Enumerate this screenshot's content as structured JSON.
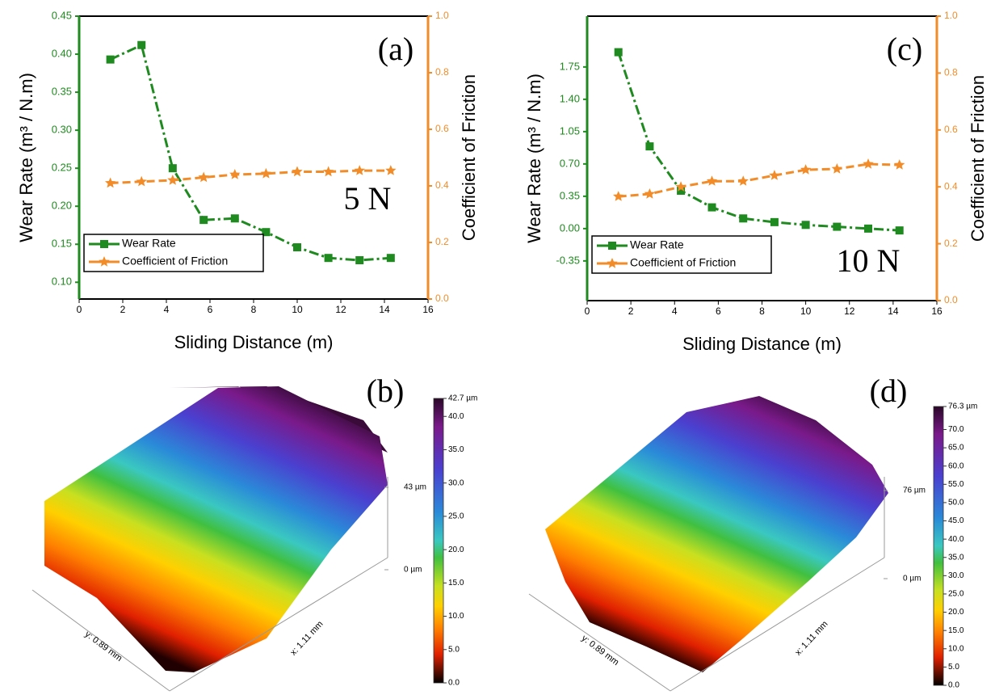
{
  "chart_data": [
    {
      "type": "line",
      "panel_label": "(a)",
      "annotation": "5 N",
      "xlabel": "Sliding Distance (m)",
      "ylabel": "Wear Rate (m³ / N.m)",
      "y2label": "Coefficient of Friction",
      "x": [
        1.43,
        2.86,
        4.29,
        5.71,
        7.14,
        8.57,
        10,
        11.43,
        12.86,
        14.29
      ],
      "series": [
        {
          "name": "Wear Rate",
          "color": "#1f8a1f",
          "marker": "square",
          "dash": "dashdot",
          "values": [
            0.393,
            0.412,
            0.25,
            0.182,
            0.184,
            0.166,
            0.146,
            0.132,
            0.129,
            0.132
          ]
        },
        {
          "name": "Coefficient of Friction",
          "color": "#f28c28",
          "marker": "star",
          "dash": "dash",
          "axis": "y2",
          "values": [
            0.41,
            0.415,
            0.42,
            0.43,
            0.44,
            0.443,
            0.45,
            0.45,
            0.454,
            0.454
          ]
        }
      ],
      "xlim": [
        0,
        16
      ],
      "xticks": [
        0,
        2,
        4,
        6,
        8,
        10,
        12,
        14,
        16
      ],
      "ylim": [
        0.078,
        0.45
      ],
      "yticks": [
        {
          "value": 0.1,
          "label": "0.10"
        },
        0.15,
        {
          "value": 0.2,
          "label": "0.20"
        },
        0.25,
        {
          "value": 0.3,
          "label": "0.30"
        },
        0.35,
        {
          "value": 0.4,
          "label": "0.40"
        },
        0.45
      ],
      "y2lim": [
        0,
        1
      ],
      "y2ticks": [
        {
          "value": 0,
          "label": "0.0"
        },
        0.2,
        0.4,
        0.6,
        0.8,
        {
          "value": 1,
          "label": "1.0"
        }
      ],
      "legend": "lower left"
    },
    {
      "type": "surface",
      "panel_label": "(b)",
      "xlabel": "x: 1.11 mm",
      "ylabel": "y: 0.89 mm",
      "zlim": [
        0,
        43
      ],
      "zticks": [
        {
          "value": 43,
          "label": "43 µm"
        },
        {
          "value": 0,
          "label": "0 µm"
        }
      ],
      "clim": [
        0,
        42.7
      ],
      "colorbar_ticks": [
        {
          "value": 0,
          "label": "0.0"
        },
        {
          "value": 5,
          "label": "5.0"
        },
        {
          "value": 10,
          "label": "10.0"
        },
        {
          "value": 15,
          "label": "15.0"
        },
        {
          "value": 20,
          "label": "20.0"
        },
        {
          "value": 25,
          "label": "25.0"
        },
        {
          "value": 30,
          "label": "30.0"
        },
        {
          "value": 35,
          "label": "35.0"
        },
        {
          "value": 40,
          "label": "40.0"
        },
        {
          "value": 42.7,
          "label": "42.7 µm"
        }
      ]
    },
    {
      "type": "line",
      "panel_label": "(c)",
      "annotation": "10 N",
      "xlabel": "Sliding Distance (m)",
      "ylabel": "Wear Rate (m³ / N.m)",
      "y2label": "Coefficient of Friction",
      "x": [
        1.43,
        2.86,
        4.29,
        5.71,
        7.14,
        8.57,
        10,
        11.43,
        12.86,
        14.29
      ],
      "series": [
        {
          "name": "Wear Rate",
          "color": "#1f8a1f",
          "marker": "square",
          "dash": "dashdot",
          "values": [
            1.91,
            0.89,
            0.41,
            0.23,
            0.11,
            0.07,
            0.04,
            0.02,
            0.0,
            -0.02
          ]
        },
        {
          "name": "Coefficient of Friction",
          "color": "#f28c28",
          "marker": "star",
          "dash": "dash",
          "axis": "y2",
          "values": [
            0.366,
            0.375,
            0.4,
            0.42,
            0.42,
            0.44,
            0.46,
            0.463,
            0.48,
            0.477
          ]
        }
      ],
      "xlim": [
        0,
        16
      ],
      "xticks": [
        0,
        2,
        4,
        6,
        8,
        10,
        12,
        14,
        16
      ],
      "ylim": [
        -0.78,
        2.3
      ],
      "yticks": [
        -0.35,
        {
          "value": 0,
          "label": "0.00"
        },
        0.35,
        {
          "value": 0.7,
          "label": "0.70"
        },
        1.05,
        {
          "value": 1.4,
          "label": "1.40"
        },
        1.75
      ],
      "y2lim": [
        0,
        1
      ],
      "y2ticks": [
        {
          "value": 0,
          "label": "0.0"
        },
        0.2,
        0.4,
        0.6,
        0.8,
        {
          "value": 1,
          "label": "1.0"
        }
      ],
      "legend": "lower left"
    },
    {
      "type": "surface",
      "panel_label": "(d)",
      "xlabel": "x: 1.11 mm",
      "ylabel": "y: 0.89 mm",
      "zlim": [
        0,
        76
      ],
      "zticks": [
        {
          "value": 76,
          "label": "76 µm"
        },
        {
          "value": 0,
          "label": "0 µm"
        }
      ],
      "clim": [
        0,
        76.3
      ],
      "colorbar_ticks": [
        {
          "value": 0,
          "label": "0.0"
        },
        {
          "value": 5,
          "label": "5.0"
        },
        {
          "value": 10,
          "label": "10.0"
        },
        {
          "value": 15,
          "label": "15.0"
        },
        {
          "value": 20,
          "label": "20.0"
        },
        {
          "value": 25,
          "label": "25.0"
        },
        {
          "value": 30,
          "label": "30.0"
        },
        {
          "value": 35,
          "label": "35.0"
        },
        {
          "value": 40,
          "label": "40.0"
        },
        {
          "value": 45,
          "label": "45.0"
        },
        {
          "value": 50,
          "label": "50.0"
        },
        {
          "value": 55,
          "label": "55.0"
        },
        {
          "value": 60,
          "label": "60.0"
        },
        {
          "value": 65,
          "label": "65.0"
        },
        {
          "value": 70,
          "label": "70.0"
        },
        {
          "value": 76.3,
          "label": "76.3 µm"
        }
      ]
    }
  ]
}
